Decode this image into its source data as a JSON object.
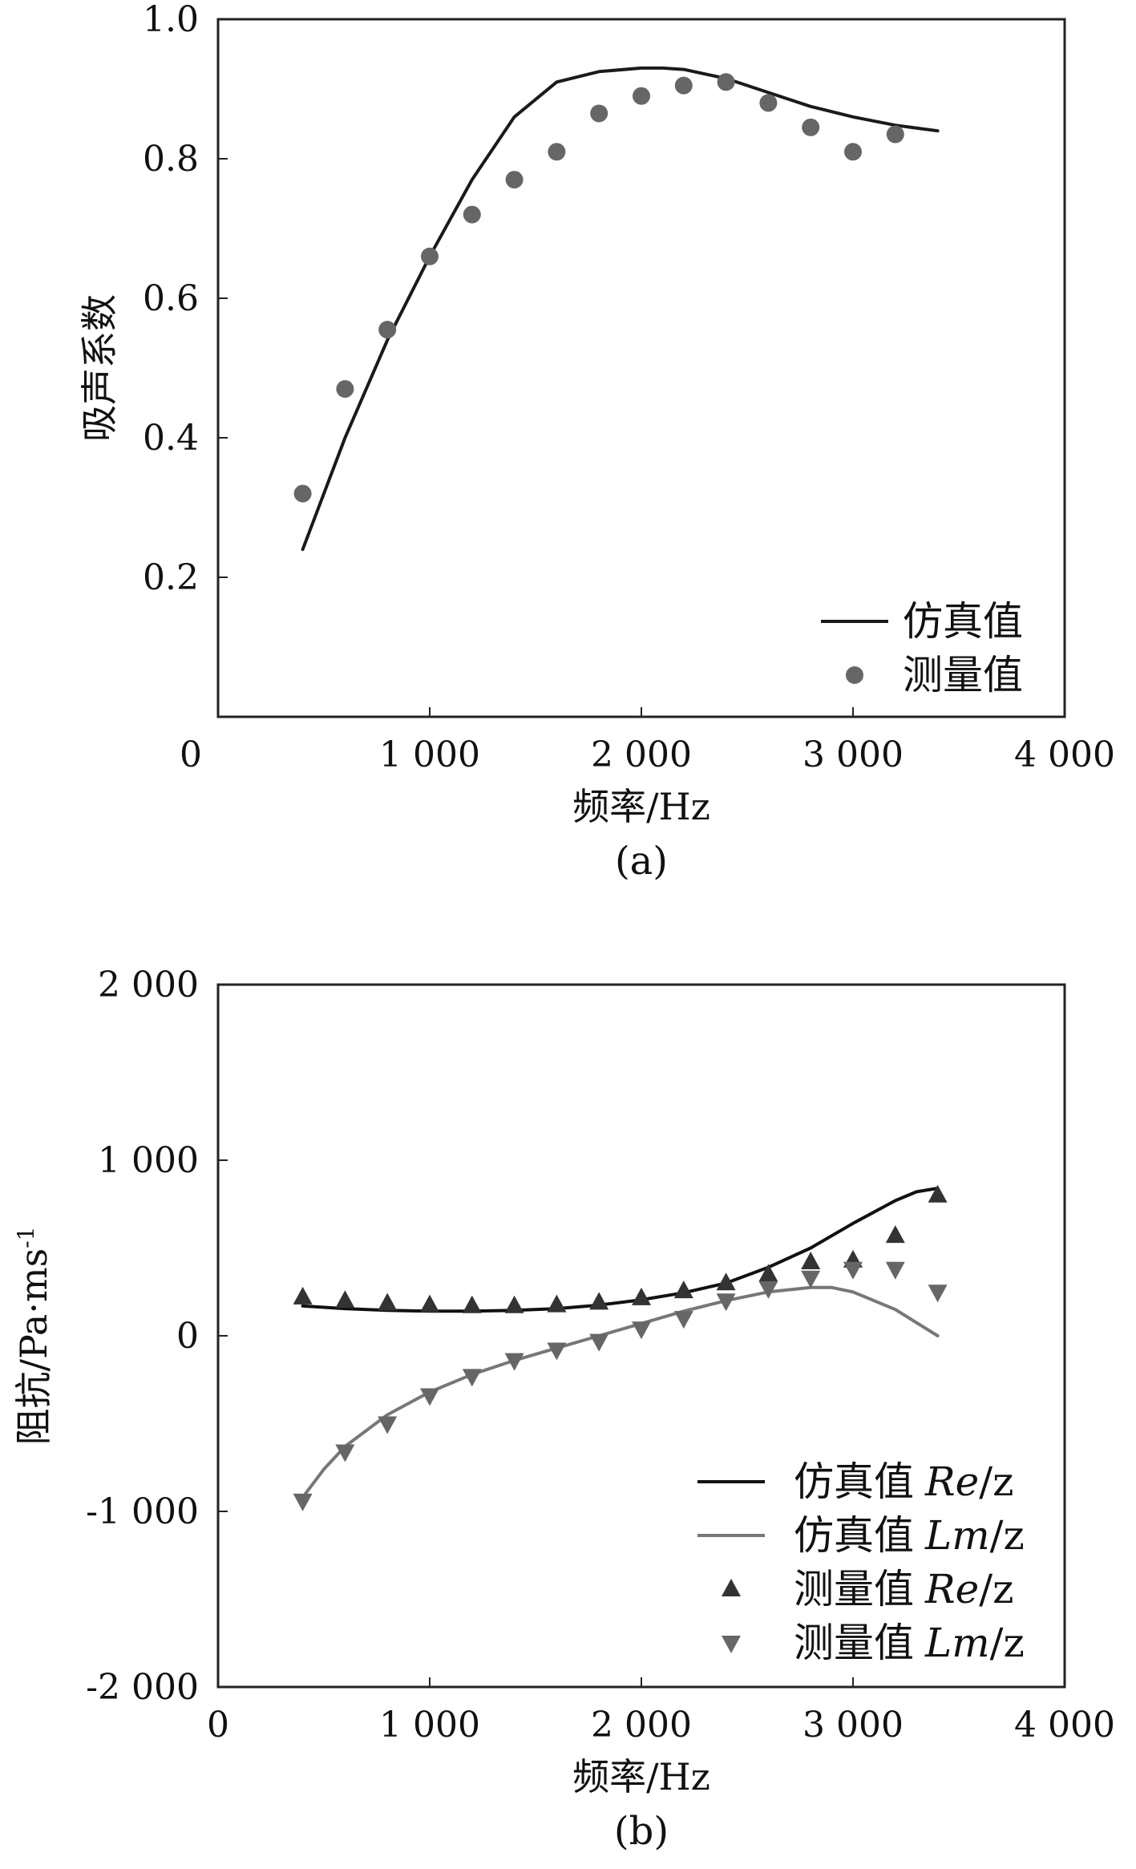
{
  "chart_data": [
    {
      "type": "line",
      "panel_label": "(a)",
      "xlabel": "频率/Hz",
      "ylabel": "吸声系数",
      "xlim": [
        0,
        4000
      ],
      "ylim": [
        0,
        1.0
      ],
      "xticks": [
        0,
        1000,
        2000,
        3000,
        4000
      ],
      "xtick_labels": [
        "0",
        "1 000",
        "2 000",
        "3 000",
        "4 000"
      ],
      "yticks": [
        0.2,
        0.4,
        0.6,
        0.8,
        1.0
      ],
      "ytick_labels": [
        "0.2",
        "0.4",
        "0.6",
        "0.8",
        "1.0"
      ],
      "grid": false,
      "legend_position": "bottom-right",
      "series": [
        {
          "name": "仿真值",
          "kind": "line",
          "color": "#1a1a1a",
          "x": [
            400,
            600,
            800,
            1000,
            1200,
            1400,
            1600,
            1800,
            2000,
            2100,
            2200,
            2400,
            2600,
            2800,
            3000,
            3200,
            3400
          ],
          "y": [
            0.24,
            0.4,
            0.54,
            0.66,
            0.77,
            0.86,
            0.91,
            0.925,
            0.93,
            0.93,
            0.928,
            0.915,
            0.895,
            0.875,
            0.86,
            0.848,
            0.84
          ]
        },
        {
          "name": "测量值",
          "kind": "scatter",
          "marker": "circle",
          "color": "#666666",
          "x": [
            400,
            600,
            800,
            1000,
            1200,
            1400,
            1600,
            1800,
            2000,
            2200,
            2400,
            2600,
            2800,
            3000,
            3200
          ],
          "y": [
            0.32,
            0.47,
            0.555,
            0.66,
            0.72,
            0.77,
            0.81,
            0.865,
            0.89,
            0.905,
            0.91,
            0.88,
            0.845,
            0.81,
            0.835
          ]
        }
      ]
    },
    {
      "type": "line",
      "panel_label": "(b)",
      "xlabel": "频率/Hz",
      "ylabel": "阻抗/Pa·ms",
      "ylabel_superscript": "-1",
      "xlim": [
        0,
        4000
      ],
      "ylim": [
        -2000,
        2000
      ],
      "xticks": [
        0,
        1000,
        2000,
        3000,
        4000
      ],
      "xtick_labels": [
        "0",
        "1 000",
        "2 000",
        "3 000",
        "4 000"
      ],
      "yticks": [
        -2000,
        -1000,
        0,
        1000,
        2000
      ],
      "ytick_labels": [
        "-2 000",
        "-1 000",
        "0",
        "1 000",
        "2 000"
      ],
      "grid": false,
      "legend_position": "bottom-right",
      "series": [
        {
          "name_prefix": "仿真值",
          "name_italic": "Re",
          "name_suffix": "/z",
          "kind": "line",
          "color": "#111111",
          "x": [
            400,
            600,
            800,
            1000,
            1200,
            1400,
            1600,
            1800,
            2000,
            2200,
            2400,
            2600,
            2800,
            3000,
            3200,
            3300,
            3400
          ],
          "y": [
            170,
            155,
            145,
            140,
            140,
            145,
            155,
            175,
            205,
            245,
            300,
            390,
            500,
            640,
            770,
            820,
            840
          ]
        },
        {
          "name_prefix": "仿真值",
          "name_italic": "Lm",
          "name_suffix": "/z",
          "kind": "line",
          "color": "#777777",
          "x": [
            400,
            500,
            600,
            800,
            1000,
            1200,
            1400,
            1600,
            1800,
            2000,
            2200,
            2400,
            2600,
            2800,
            2900,
            3000,
            3200,
            3400
          ],
          "y": [
            -920,
            -760,
            -630,
            -450,
            -320,
            -220,
            -140,
            -70,
            0,
            70,
            140,
            200,
            250,
            275,
            275,
            250,
            150,
            0
          ]
        },
        {
          "name_prefix": "测量值",
          "name_italic": "Re",
          "name_suffix": "/z",
          "kind": "scatter",
          "marker": "triangle-up",
          "color": "#333333",
          "x": [
            400,
            600,
            800,
            1000,
            1200,
            1400,
            1600,
            1800,
            2000,
            2200,
            2400,
            2600,
            2800,
            3000,
            3200,
            3400
          ],
          "y": [
            220,
            200,
            185,
            175,
            170,
            170,
            175,
            190,
            215,
            255,
            300,
            350,
            420,
            430,
            570,
            800
          ]
        },
        {
          "name_prefix": "测量值",
          "name_italic": "Lm",
          "name_suffix": "/z",
          "kind": "scatter",
          "marker": "triangle-down",
          "color": "#666666",
          "x": [
            400,
            600,
            800,
            1000,
            1200,
            1400,
            1600,
            1800,
            2000,
            2200,
            2400,
            2600,
            2800,
            3000,
            3200,
            3400
          ],
          "y": [
            -940,
            -660,
            -500,
            -340,
            -230,
            -140,
            -80,
            -30,
            40,
            100,
            200,
            270,
            330,
            380,
            380,
            250
          ]
        }
      ]
    }
  ]
}
